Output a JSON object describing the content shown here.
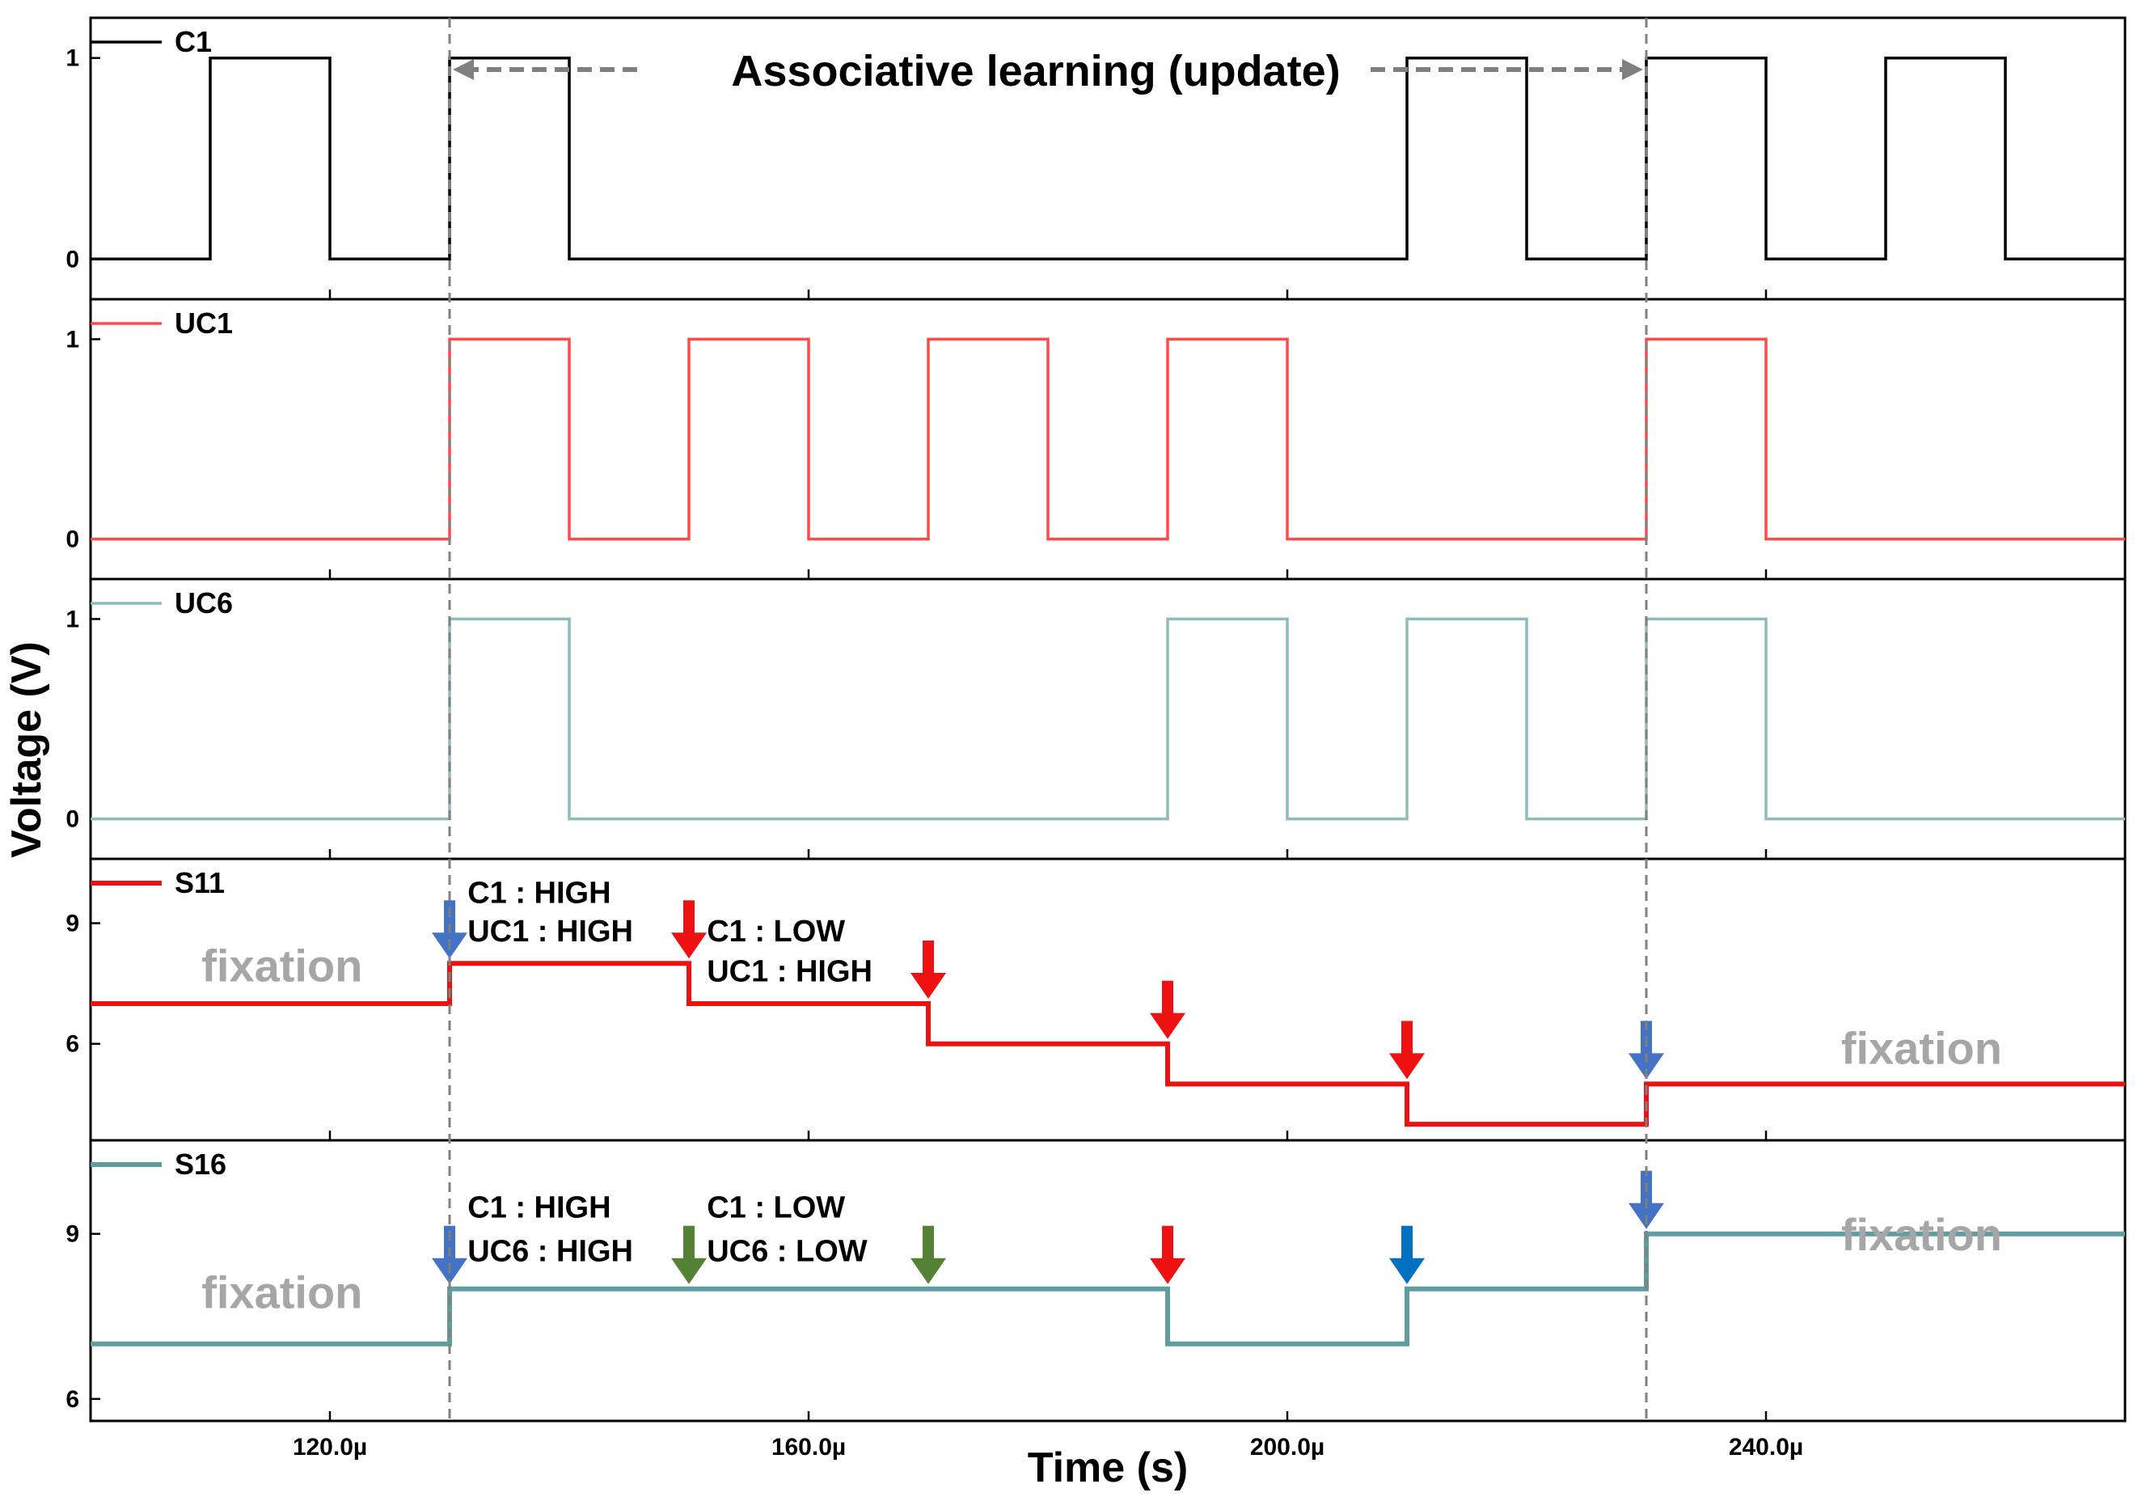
{
  "chart_data": {
    "type": "line",
    "title": "Associative learning (update)",
    "xlabel": "Time (s)",
    "ylabel": "Voltage (V)",
    "xlim": [
      100,
      270
    ],
    "x_unit": "µs",
    "x_ticks": [
      120,
      160,
      200,
      240
    ],
    "x_tick_labels": [
      "120.0µ",
      "160.0µ",
      "200.0µ",
      "240.0µ"
    ],
    "event_markers_x": [
      130,
      230
    ],
    "panels": [
      {
        "name": "C1",
        "color": "#000000",
        "line": "thin",
        "ylim": [
          -0.2,
          1.2
        ],
        "yticks": [
          0,
          1
        ],
        "ytick_labels": [
          "0",
          "1"
        ],
        "x": [
          100,
          110,
          110,
          120,
          120,
          130,
          130,
          140,
          140,
          210,
          210,
          220,
          220,
          230,
          230,
          240,
          240,
          250,
          250,
          260,
          260,
          270
        ],
        "y": [
          0,
          0,
          1,
          1,
          0,
          0,
          1,
          1,
          0,
          0,
          1,
          1,
          0,
          0,
          1,
          1,
          0,
          0,
          1,
          1,
          0,
          0
        ]
      },
      {
        "name": "UC1",
        "color": "#ff4a4a",
        "line": "thin",
        "ylim": [
          -0.2,
          1.2
        ],
        "yticks": [
          0,
          1
        ],
        "ytick_labels": [
          "0",
          "1"
        ],
        "x": [
          100,
          130,
          130,
          140,
          140,
          150,
          150,
          160,
          160,
          170,
          170,
          180,
          180,
          190,
          190,
          200,
          200,
          230,
          230,
          240,
          240,
          270
        ],
        "y": [
          0,
          0,
          1,
          1,
          0,
          0,
          1,
          1,
          0,
          0,
          1,
          1,
          0,
          0,
          1,
          1,
          0,
          0,
          1,
          1,
          0,
          0
        ]
      },
      {
        "name": "UC6",
        "color": "#8fbcbb",
        "line": "thin",
        "ylim": [
          -0.2,
          1.2
        ],
        "yticks": [
          0,
          1
        ],
        "ytick_labels": [
          "0",
          "1"
        ],
        "x": [
          100,
          130,
          130,
          140,
          140,
          190,
          190,
          200,
          200,
          210,
          210,
          220,
          220,
          230,
          230,
          240,
          240,
          270
        ],
        "y": [
          0,
          0,
          1,
          1,
          0,
          0,
          1,
          1,
          0,
          0,
          1,
          1,
          0,
          0,
          1,
          1,
          0,
          0
        ]
      },
      {
        "name": "S11",
        "color": "#ee1111",
        "line": "thick",
        "ylim": [
          3.6,
          10.6
        ],
        "yticks": [
          6,
          9
        ],
        "ytick_labels": [
          "6",
          "9"
        ],
        "x": [
          100,
          130,
          130,
          150,
          150,
          170,
          170,
          190,
          190,
          210,
          210,
          230,
          230,
          270
        ],
        "y": [
          7,
          7,
          8,
          8,
          7,
          7,
          6,
          6,
          5,
          5,
          4,
          4,
          5,
          5
        ]
      },
      {
        "name": "S16",
        "color": "#5f9ea0",
        "line": "thick",
        "ylim": [
          5.6,
          10.7
        ],
        "yticks": [
          6,
          9
        ],
        "ytick_labels": [
          "6",
          "9"
        ],
        "x": [
          100,
          130,
          130,
          190,
          190,
          210,
          210,
          230,
          230,
          270
        ],
        "y": [
          7,
          7,
          8,
          8,
          7,
          7,
          8,
          8,
          9,
          9
        ]
      }
    ],
    "arrows": [
      {
        "panel": 3,
        "x": 130,
        "y_value": 8,
        "color": "#4472c4"
      },
      {
        "panel": 3,
        "x": 150,
        "y_value": 8,
        "color": "#ee1111"
      },
      {
        "panel": 3,
        "x": 170,
        "y_value": 7,
        "color": "#ee1111"
      },
      {
        "panel": 3,
        "x": 190,
        "y_value": 6,
        "color": "#ee1111"
      },
      {
        "panel": 3,
        "x": 210,
        "y_value": 5,
        "color": "#ee1111"
      },
      {
        "panel": 3,
        "x": 230,
        "y_value": 5,
        "color": "#4472c4"
      },
      {
        "panel": 4,
        "x": 130,
        "y_value": 8,
        "color": "#4472c4"
      },
      {
        "panel": 4,
        "x": 150,
        "y_value": 8,
        "color": "#548235"
      },
      {
        "panel": 4,
        "x": 170,
        "y_value": 8,
        "color": "#548235"
      },
      {
        "panel": 4,
        "x": 190,
        "y_value": 8,
        "color": "#ee1111"
      },
      {
        "panel": 4,
        "x": 210,
        "y_value": 8,
        "color": "#0070c0"
      },
      {
        "panel": 4,
        "x": 230,
        "y_value": 9,
        "color": "#4472c4"
      }
    ],
    "annotations": [
      {
        "panel": 3,
        "x": 131.5,
        "y_value": 9.5,
        "text": "C1 : HIGH",
        "kind": "state"
      },
      {
        "panel": 3,
        "x": 131.5,
        "y_value": 8.55,
        "text": "UC1 : HIGH",
        "kind": "state"
      },
      {
        "panel": 3,
        "x": 151.5,
        "y_value": 8.55,
        "text": "C1 : LOW",
        "kind": "state"
      },
      {
        "panel": 3,
        "x": 151.5,
        "y_value": 7.55,
        "text": "UC1 : HIGH",
        "kind": "state"
      },
      {
        "panel": 3,
        "x": 116,
        "y_value": 7.55,
        "text": "fixation",
        "kind": "fixation"
      },
      {
        "panel": 3,
        "x": 253,
        "y_value": 5.5,
        "text": "fixation",
        "kind": "fixation"
      },
      {
        "panel": 4,
        "x": 131.5,
        "y_value": 9.3,
        "text": "C1 : HIGH",
        "kind": "state"
      },
      {
        "panel": 4,
        "x": 131.5,
        "y_value": 8.5,
        "text": "UC6 : HIGH",
        "kind": "state"
      },
      {
        "panel": 4,
        "x": 151.5,
        "y_value": 9.3,
        "text": "C1 : LOW",
        "kind": "state"
      },
      {
        "panel": 4,
        "x": 151.5,
        "y_value": 8.5,
        "text": "UC6 : LOW",
        "kind": "state"
      },
      {
        "panel": 4,
        "x": 116,
        "y_value": 7.65,
        "text": "fixation",
        "kind": "fixation"
      },
      {
        "panel": 4,
        "x": 253,
        "y_value": 8.7,
        "text": "fixation",
        "kind": "fixation"
      }
    ]
  }
}
